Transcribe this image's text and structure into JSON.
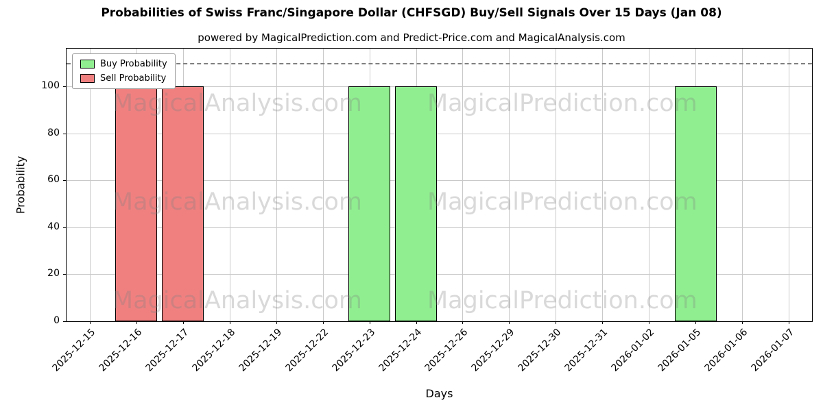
{
  "chart_data": {
    "type": "bar",
    "title": "Probabilities of Swiss Franc/Singapore Dollar (CHFSGD) Buy/Sell Signals Over 15 Days (Jan 08)",
    "subtitle": "powered by MagicalPrediction.com and Predict-Price.com and MagicalAnalysis.com",
    "xlabel": "Days",
    "ylabel": "Probability",
    "categories": [
      "2025-12-15",
      "2025-12-16",
      "2025-12-17",
      "2025-12-18",
      "2025-12-19",
      "2025-12-22",
      "2025-12-23",
      "2025-12-24",
      "2025-12-26",
      "2025-12-29",
      "2025-12-30",
      "2025-12-31",
      "2026-01-02",
      "2026-01-05",
      "2026-01-06",
      "2026-01-07"
    ],
    "series": [
      {
        "name": "Buy Probability",
        "color": "#90ee90",
        "values": [
          0,
          0,
          0,
          0,
          0,
          0,
          100,
          100,
          0,
          0,
          0,
          0,
          0,
          100,
          0,
          0
        ]
      },
      {
        "name": "Sell Probability",
        "color": "#f08080",
        "values": [
          0,
          100,
          100,
          0,
          0,
          0,
          0,
          0,
          0,
          0,
          0,
          0,
          0,
          0,
          0,
          0
        ]
      }
    ],
    "ylim": [
      0,
      116
    ],
    "yticks": [
      0,
      20,
      40,
      60,
      80,
      100
    ],
    "threshold_line_y": 110,
    "grid": true,
    "legend_position": "upper left",
    "bar_width_fraction": 0.9,
    "bar_edge_color": "#000000",
    "grid_color": "#c9c9c9",
    "watermarks": [
      "MagicalAnalysis.com",
      "MagicalPrediction.com"
    ]
  }
}
